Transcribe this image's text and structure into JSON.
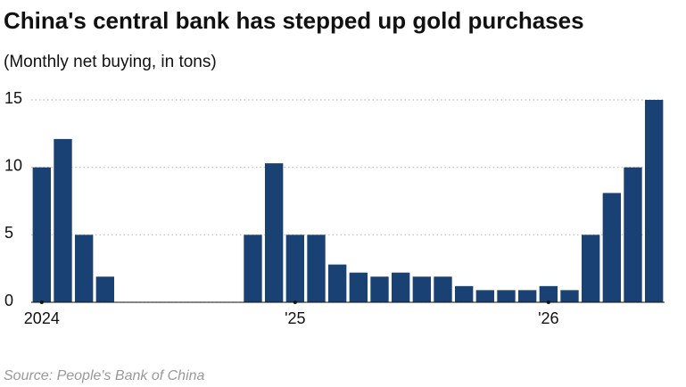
{
  "chart_data": {
    "type": "bar",
    "title": "China's central bank has stepped up gold purchases",
    "subtitle": "(Monthly net buying, in tons)",
    "source": "Source: People's Bank of China",
    "categories": [
      "2024",
      null,
      null,
      null,
      null,
      null,
      null,
      null,
      null,
      null,
      null,
      null,
      "'25",
      null,
      null,
      null,
      null,
      null,
      null,
      null,
      null,
      null,
      null,
      null,
      "'26",
      null,
      null,
      null,
      null,
      null
    ],
    "values": [
      10,
      12.1,
      5,
      1.9,
      0,
      0,
      0,
      0,
      0,
      0,
      5,
      10.3,
      5,
      5,
      2.8,
      2.2,
      1.9,
      2.2,
      1.9,
      1.9,
      1.2,
      0.9,
      0.9,
      0.9,
      1.2,
      0.9,
      5,
      8.1,
      10,
      15
    ],
    "color": "#1a4173",
    "ylim": [
      0,
      15
    ],
    "yticks": [
      0,
      5,
      10,
      15
    ],
    "grid": true
  }
}
